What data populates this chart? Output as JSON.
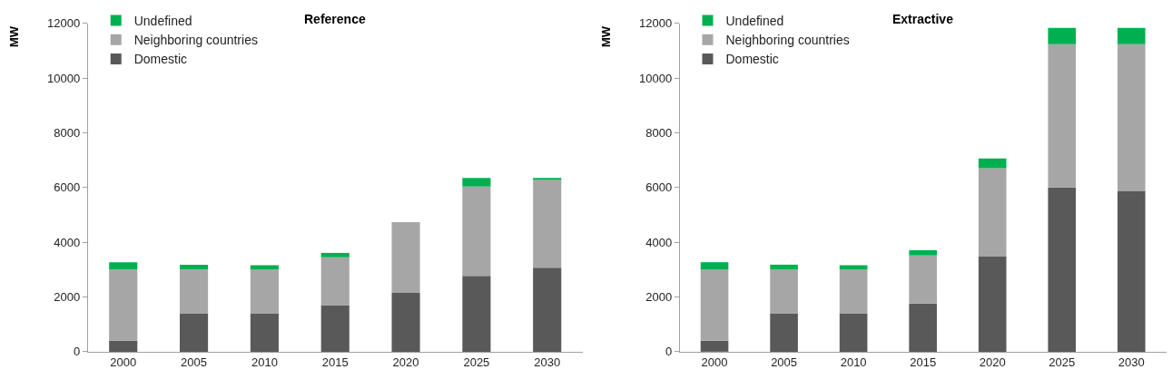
{
  "chart_data": [
    {
      "type": "bar",
      "title": "Reference",
      "ylabel": "MW",
      "stacked": true,
      "categories": [
        "2000",
        "2005",
        "2010",
        "2015",
        "2020",
        "2025",
        "2030"
      ],
      "series": [
        {
          "name": "Domestic",
          "color": "#595959",
          "values": [
            400,
            1400,
            1400,
            1700,
            2150,
            2770,
            3070
          ]
        },
        {
          "name": "Neighboring countries",
          "color": "#a6a6a6",
          "values": [
            2600,
            1600,
            1600,
            1750,
            2580,
            3260,
            3200
          ]
        },
        {
          "name": "Undefined",
          "color": "#00b050",
          "values": [
            270,
            180,
            160,
            160,
            0,
            320,
            80
          ]
        }
      ],
      "ylim": [
        0,
        12000
      ],
      "yticks": [
        0,
        2000,
        4000,
        6000,
        8000,
        10000,
        12000
      ],
      "legend": "top left"
    },
    {
      "type": "bar",
      "title": "Extractive",
      "ylabel": "MW",
      "stacked": true,
      "categories": [
        "2000",
        "2005",
        "2010",
        "2015",
        "2020",
        "2025",
        "2030"
      ],
      "series": [
        {
          "name": "Domestic",
          "color": "#595959",
          "values": [
            400,
            1400,
            1400,
            1760,
            3490,
            6000,
            5860
          ]
        },
        {
          "name": "Neighboring countries",
          "color": "#a6a6a6",
          "values": [
            2600,
            1600,
            1600,
            1760,
            3210,
            5230,
            5370
          ]
        },
        {
          "name": "Undefined",
          "color": "#00b050",
          "values": [
            270,
            180,
            160,
            190,
            360,
            600,
            600
          ]
        }
      ],
      "ylim": [
        0,
        12000
      ],
      "yticks": [
        0,
        2000,
        4000,
        6000,
        8000,
        10000,
        12000
      ],
      "legend": "top left"
    }
  ]
}
